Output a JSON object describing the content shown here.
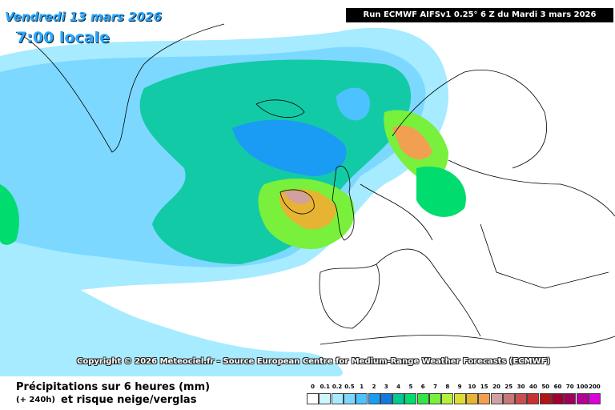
{
  "header": {
    "date": "Vendredi 13 mars 2026",
    "time": "7:00 locale",
    "run": "Run ECMWF AIFSv1 0.25° 6 Z du Mardi 3 mars 2026"
  },
  "copyright": "Copyright © 2026 Meteociel.fr - Source European Centre for Medium-Range Weather Forecasts (ECMWF)",
  "legend": {
    "title": "Précipitations sur 6 heures (mm)",
    "lead": "(+ 240h)",
    "subtitle": "et risque neige/verglas",
    "items": [
      {
        "label": "0",
        "color": "#ffffff"
      },
      {
        "label": "0.1",
        "color": "#ccf5ff"
      },
      {
        "label": "0.2",
        "color": "#a6ebff"
      },
      {
        "label": "0.5",
        "color": "#7dd8ff"
      },
      {
        "label": "1",
        "color": "#4cc2ff"
      },
      {
        "label": "2",
        "color": "#1a9cf5"
      },
      {
        "label": "3",
        "color": "#1478dc"
      },
      {
        "label": "4",
        "color": "#00c896"
      },
      {
        "label": "5",
        "color": "#00dc6e"
      },
      {
        "label": "6",
        "color": "#32e646"
      },
      {
        "label": "7",
        "color": "#78f03c"
      },
      {
        "label": "8",
        "color": "#b4f03c"
      },
      {
        "label": "9",
        "color": "#dcdc32"
      },
      {
        "label": "10",
        "color": "#e6b432"
      },
      {
        "label": "15",
        "color": "#f0a050"
      },
      {
        "label": "20",
        "color": "#d2a0a0"
      },
      {
        "label": "25",
        "color": "#c87878"
      },
      {
        "label": "30",
        "color": "#c85050"
      },
      {
        "label": "40",
        "color": "#c83232"
      },
      {
        "label": "50",
        "color": "#b41414"
      },
      {
        "label": "60",
        "color": "#a00032"
      },
      {
        "label": "70",
        "color": "#a0005a"
      },
      {
        "label": "100",
        "color": "#b40096"
      },
      {
        "label": "200",
        "color": "#dc00dc"
      }
    ]
  }
}
